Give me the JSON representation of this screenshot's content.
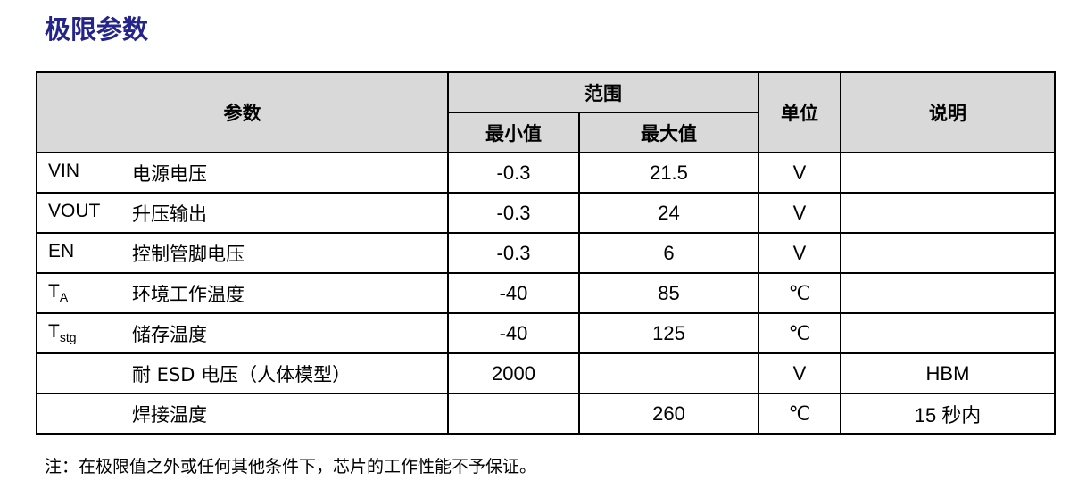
{
  "title": "极限参数",
  "header": {
    "param": "参数",
    "range": "范围",
    "min": "最小值",
    "max": "最大值",
    "unit": "单位",
    "desc": "说明"
  },
  "rows": [
    {
      "sym": "VIN",
      "sub": "",
      "name": "电源电压",
      "min": "-0.3",
      "max": "21.5",
      "unit": "V",
      "desc": ""
    },
    {
      "sym": "VOUT",
      "sub": "",
      "name": "升压输出",
      "min": "-0.3",
      "max": "24",
      "unit": "V",
      "desc": ""
    },
    {
      "sym": "EN",
      "sub": "",
      "name": "控制管脚电压",
      "min": "-0.3",
      "max": "6",
      "unit": "V",
      "desc": ""
    },
    {
      "sym": "T",
      "sub": "A",
      "name": "环境工作温度",
      "min": "-40",
      "max": "85",
      "unit": "℃",
      "desc": ""
    },
    {
      "sym": "T",
      "sub": "stg",
      "name": "储存温度",
      "min": "-40",
      "max": "125",
      "unit": "℃",
      "desc": ""
    },
    {
      "sym": "",
      "sub": "",
      "name": "耐 ESD 电压（人体模型）",
      "min": "2000",
      "max": "",
      "unit": "V",
      "desc": "HBM"
    },
    {
      "sym": "",
      "sub": "",
      "name": "焊接温度",
      "min": "",
      "max": "260",
      "unit": "℃",
      "desc": "15 秒内"
    }
  ],
  "note": "注：在极限值之外或任何其他条件下，芯片的工作性能不予保证。"
}
